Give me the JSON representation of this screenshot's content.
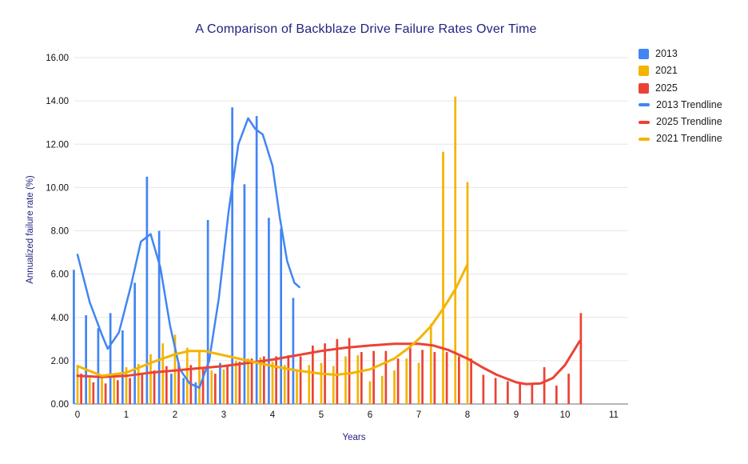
{
  "page": {
    "background": "#ffffff"
  },
  "chart_data": {
    "type": "bar",
    "title": "A Comparison of Backblaze Drive Failure Rates Over Time",
    "xlabel": "Years",
    "ylabel": "Annualized failure rate (%)",
    "title_color": "#232280",
    "axis_label_color": "#232280",
    "tick_color": "#111111",
    "grid_color": "#e6e6e6",
    "axis_line_color": "#8a8a8a",
    "legend_position": "right",
    "grid": true,
    "ylim": [
      0,
      16
    ],
    "xlim": [
      0,
      11
    ],
    "y_ticks": [
      "16.00",
      "14.00",
      "12.00",
      "10.00",
      "8.00",
      "6.00",
      "4.00",
      "2.00",
      "0.00"
    ],
    "x_ticks": [
      "0",
      "1",
      "2",
      "3",
      "4",
      "5",
      "6",
      "7",
      "8",
      "9",
      "10",
      "11"
    ],
    "series": [
      {
        "name": "2013",
        "color": "#4285F4",
        "points": [
          [
            0,
            6.2
          ],
          [
            0.25,
            4.1
          ],
          [
            0.5,
            3.5
          ],
          [
            0.75,
            4.2
          ],
          [
            1,
            3.4
          ],
          [
            1.25,
            5.6
          ],
          [
            1.5,
            10.5
          ],
          [
            1.75,
            8.0
          ],
          [
            2,
            1.4
          ],
          [
            2.25,
            1.2
          ],
          [
            2.5,
            1.0
          ],
          [
            2.75,
            8.5
          ],
          [
            3,
            1.9
          ],
          [
            3.25,
            13.7
          ],
          [
            3.5,
            10.15
          ],
          [
            3.75,
            13.3
          ],
          [
            4,
            8.6
          ],
          [
            4.25,
            8.1
          ],
          [
            4.5,
            4.9
          ]
        ]
      },
      {
        "name": "2021",
        "color": "#F4B400",
        "points": [
          [
            0,
            1.8
          ],
          [
            0.25,
            1.2
          ],
          [
            0.5,
            1.2
          ],
          [
            0.75,
            1.3
          ],
          [
            1,
            1.7
          ],
          [
            1.25,
            1.85
          ],
          [
            1.5,
            2.3
          ],
          [
            1.75,
            2.8
          ],
          [
            2,
            3.2
          ],
          [
            2.25,
            2.6
          ],
          [
            2.5,
            2.5
          ],
          [
            2.75,
            1.55
          ],
          [
            3,
            1.6
          ],
          [
            3.25,
            2.0
          ],
          [
            3.5,
            2.1
          ],
          [
            3.75,
            2.15
          ],
          [
            4,
            1.95
          ],
          [
            4.25,
            1.8
          ],
          [
            4.5,
            1.55
          ],
          [
            4.75,
            1.8
          ],
          [
            5,
            1.9
          ],
          [
            5.25,
            1.75
          ],
          [
            5.5,
            2.2
          ],
          [
            5.75,
            2.25
          ],
          [
            6,
            1.05
          ],
          [
            6.25,
            1.3
          ],
          [
            6.5,
            1.55
          ],
          [
            6.75,
            2.1
          ],
          [
            7,
            1.9
          ],
          [
            7.25,
            3.7
          ],
          [
            7.5,
            11.65
          ],
          [
            7.75,
            14.2
          ],
          [
            8,
            10.25
          ]
        ]
      },
      {
        "name": "2025",
        "color": "#EA4335",
        "points": [
          [
            0,
            1.4
          ],
          [
            0.25,
            1.0
          ],
          [
            0.5,
            0.95
          ],
          [
            0.75,
            1.1
          ],
          [
            1,
            1.2
          ],
          [
            1.25,
            1.4
          ],
          [
            1.5,
            1.55
          ],
          [
            1.75,
            1.75
          ],
          [
            2,
            1.9
          ],
          [
            2.25,
            1.8
          ],
          [
            2.5,
            1.7
          ],
          [
            2.75,
            1.4
          ],
          [
            3,
            1.8
          ],
          [
            3.25,
            1.95
          ],
          [
            3.5,
            2.1
          ],
          [
            3.75,
            2.2
          ],
          [
            4,
            2.2
          ],
          [
            4.25,
            2.25
          ],
          [
            4.5,
            2.2
          ],
          [
            4.75,
            2.7
          ],
          [
            5,
            2.8
          ],
          [
            5.25,
            3.0
          ],
          [
            5.5,
            3.05
          ],
          [
            5.75,
            2.4
          ],
          [
            6,
            2.45
          ],
          [
            6.25,
            2.45
          ],
          [
            6.5,
            2.1
          ],
          [
            6.75,
            2.6
          ],
          [
            7,
            2.5
          ],
          [
            7.25,
            2.4
          ],
          [
            7.5,
            2.4
          ],
          [
            7.75,
            2.2
          ],
          [
            8,
            2.1
          ],
          [
            8.25,
            1.35
          ],
          [
            8.5,
            1.2
          ],
          [
            8.75,
            1.05
          ],
          [
            9,
            1.0
          ],
          [
            9.25,
            0.95
          ],
          [
            9.5,
            1.7
          ],
          [
            9.75,
            0.85
          ],
          [
            10,
            1.4
          ],
          [
            10.25,
            4.2
          ]
        ]
      }
    ],
    "trendlines": [
      {
        "name": "2013 Trendline",
        "color": "#4285F4",
        "points": [
          [
            0,
            6.9
          ],
          [
            0.25,
            4.7
          ],
          [
            0.5,
            3.2
          ],
          [
            0.62,
            2.55
          ],
          [
            0.85,
            3.3
          ],
          [
            1.1,
            5.5
          ],
          [
            1.3,
            7.5
          ],
          [
            1.5,
            7.85
          ],
          [
            1.7,
            6.3
          ],
          [
            1.9,
            3.6
          ],
          [
            2.1,
            1.6
          ],
          [
            2.3,
            0.95
          ],
          [
            2.5,
            0.75
          ],
          [
            2.7,
            2.0
          ],
          [
            2.9,
            4.9
          ],
          [
            3.1,
            8.9
          ],
          [
            3.3,
            12.0
          ],
          [
            3.5,
            13.2
          ],
          [
            3.65,
            12.7
          ],
          [
            3.8,
            12.45
          ],
          [
            4,
            11.0
          ],
          [
            4.15,
            8.6
          ],
          [
            4.3,
            6.6
          ],
          [
            4.45,
            5.6
          ],
          [
            4.55,
            5.4
          ]
        ]
      },
      {
        "name": "2025 Trendline",
        "color": "#EA4335",
        "points": [
          [
            0,
            1.3
          ],
          [
            0.5,
            1.25
          ],
          [
            1,
            1.3
          ],
          [
            1.5,
            1.45
          ],
          [
            2,
            1.55
          ],
          [
            2.5,
            1.65
          ],
          [
            3,
            1.75
          ],
          [
            3.5,
            1.9
          ],
          [
            4,
            2.05
          ],
          [
            4.5,
            2.25
          ],
          [
            5,
            2.45
          ],
          [
            5.5,
            2.6
          ],
          [
            6,
            2.7
          ],
          [
            6.5,
            2.78
          ],
          [
            7,
            2.78
          ],
          [
            7.3,
            2.7
          ],
          [
            7.6,
            2.5
          ],
          [
            8,
            2.1
          ],
          [
            8.3,
            1.7
          ],
          [
            8.6,
            1.35
          ],
          [
            9,
            1.0
          ],
          [
            9.2,
            0.92
          ],
          [
            9.5,
            0.95
          ],
          [
            9.75,
            1.2
          ],
          [
            10,
            1.8
          ],
          [
            10.3,
            2.9
          ]
        ]
      },
      {
        "name": "2021 Trendline",
        "color": "#F4B400",
        "points": [
          [
            0,
            1.75
          ],
          [
            0.5,
            1.3
          ],
          [
            1,
            1.45
          ],
          [
            1.5,
            1.9
          ],
          [
            2,
            2.3
          ],
          [
            2.3,
            2.45
          ],
          [
            2.6,
            2.45
          ],
          [
            3,
            2.25
          ],
          [
            3.5,
            2.0
          ],
          [
            4,
            1.75
          ],
          [
            4.5,
            1.55
          ],
          [
            5,
            1.4
          ],
          [
            5.3,
            1.35
          ],
          [
            5.6,
            1.42
          ],
          [
            6,
            1.6
          ],
          [
            6.5,
            2.1
          ],
          [
            6.8,
            2.6
          ],
          [
            7,
            3.0
          ],
          [
            7.25,
            3.6
          ],
          [
            7.5,
            4.4
          ],
          [
            7.75,
            5.3
          ],
          [
            8,
            6.45
          ]
        ]
      }
    ],
    "legend": [
      {
        "label": "2013",
        "color": "#4285F4",
        "swatch": "square"
      },
      {
        "label": "2021",
        "color": "#F4B400",
        "swatch": "square"
      },
      {
        "label": "2025",
        "color": "#EA4335",
        "swatch": "square"
      },
      {
        "label": "2013 Trendline",
        "color": "#4285F4",
        "swatch": "line"
      },
      {
        "label": "2025 Trendline",
        "color": "#EA4335",
        "swatch": "line"
      },
      {
        "label": "2021 Trendline",
        "color": "#F4B400",
        "swatch": "line"
      }
    ]
  }
}
